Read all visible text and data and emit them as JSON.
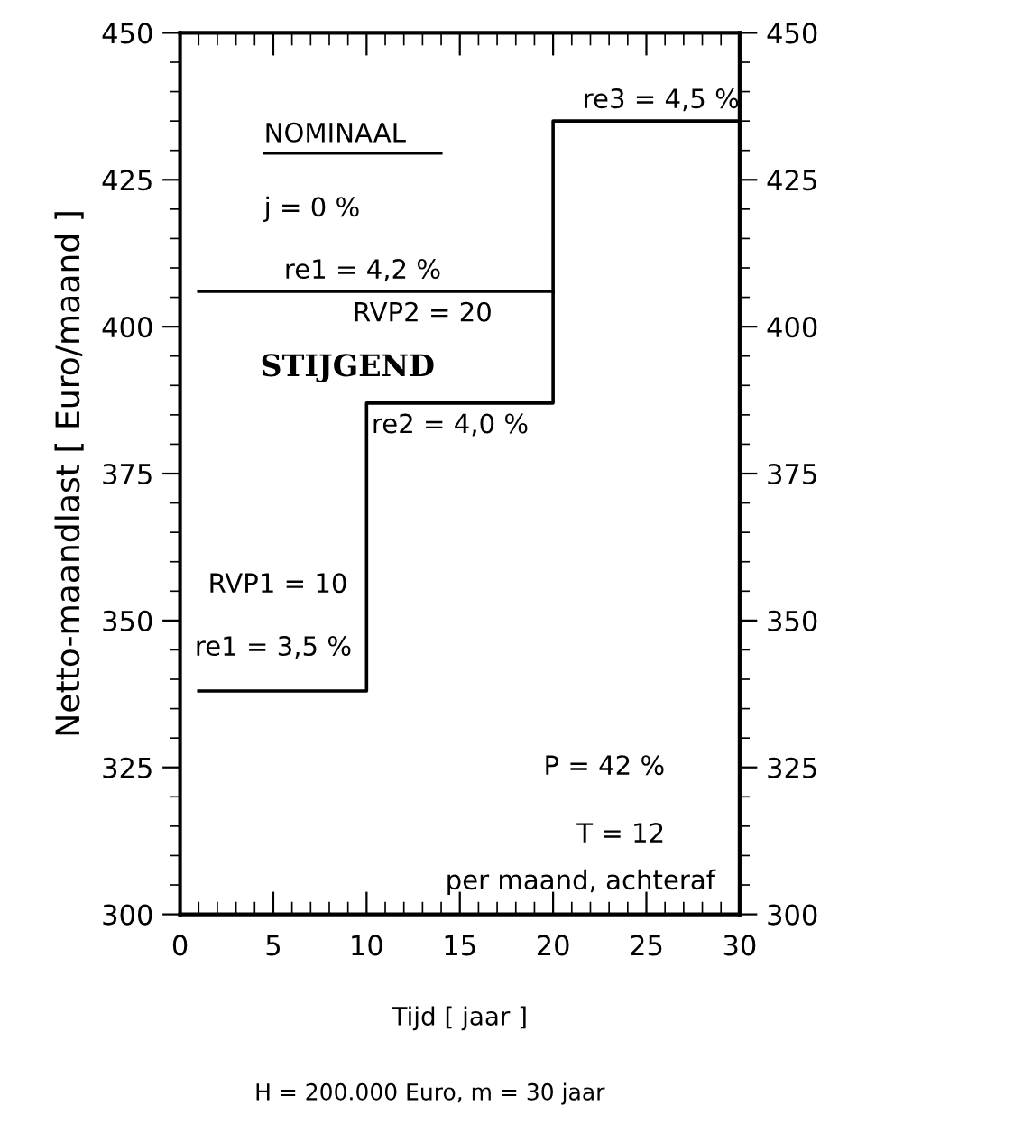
{
  "chart_data": {
    "type": "step",
    "xlabel": "Tijd [ jaar ]",
    "ylabel": "Netto-maandlast [ Euro/maand ]",
    "series": [
      {
        "x": [
          1,
          10,
          20,
          30
        ],
        "values": [
          338,
          387,
          435,
          435
        ],
        "color": "#000000"
      },
      {
        "x": [
          1,
          20
        ],
        "values": [
          406,
          406
        ],
        "color": "#000000"
      }
    ],
    "xlim": [
      0,
      30
    ],
    "xticks": [
      0,
      5,
      10,
      15,
      20,
      25,
      30
    ],
    "ylim": [
      300,
      450
    ],
    "yticks": [
      300,
      325,
      350,
      375,
      400,
      425,
      450
    ],
    "y2lim": [
      300,
      450
    ],
    "y2ticks": [
      300,
      325,
      350,
      375,
      400,
      425,
      450
    ],
    "grid": false,
    "legend": false,
    "marker": "none",
    "line_style": "solid",
    "annotations": [
      "NOMINAAL",
      "j = 0 %",
      {
        "text": "re1 = 4,2 %",
        "x": 14,
        "y": 406
      },
      {
        "text": "RVP2 = 20",
        "x": 13,
        "y": 406
      },
      "STIJGEND",
      {
        "text": "re2 = 4,0 %",
        "x": 10,
        "y": 387
      },
      {
        "text": "re3 = 4,5 %",
        "x": 30,
        "y": 435
      },
      "RVP1 = 10",
      {
        "text": "re1 = 3,5 %",
        "x": 5,
        "y": 338
      },
      "P = 42 %",
      "T = 12",
      "per maand, achteraf",
      "H = 200.000 Euro, m = 30 jaar"
    ]
  }
}
